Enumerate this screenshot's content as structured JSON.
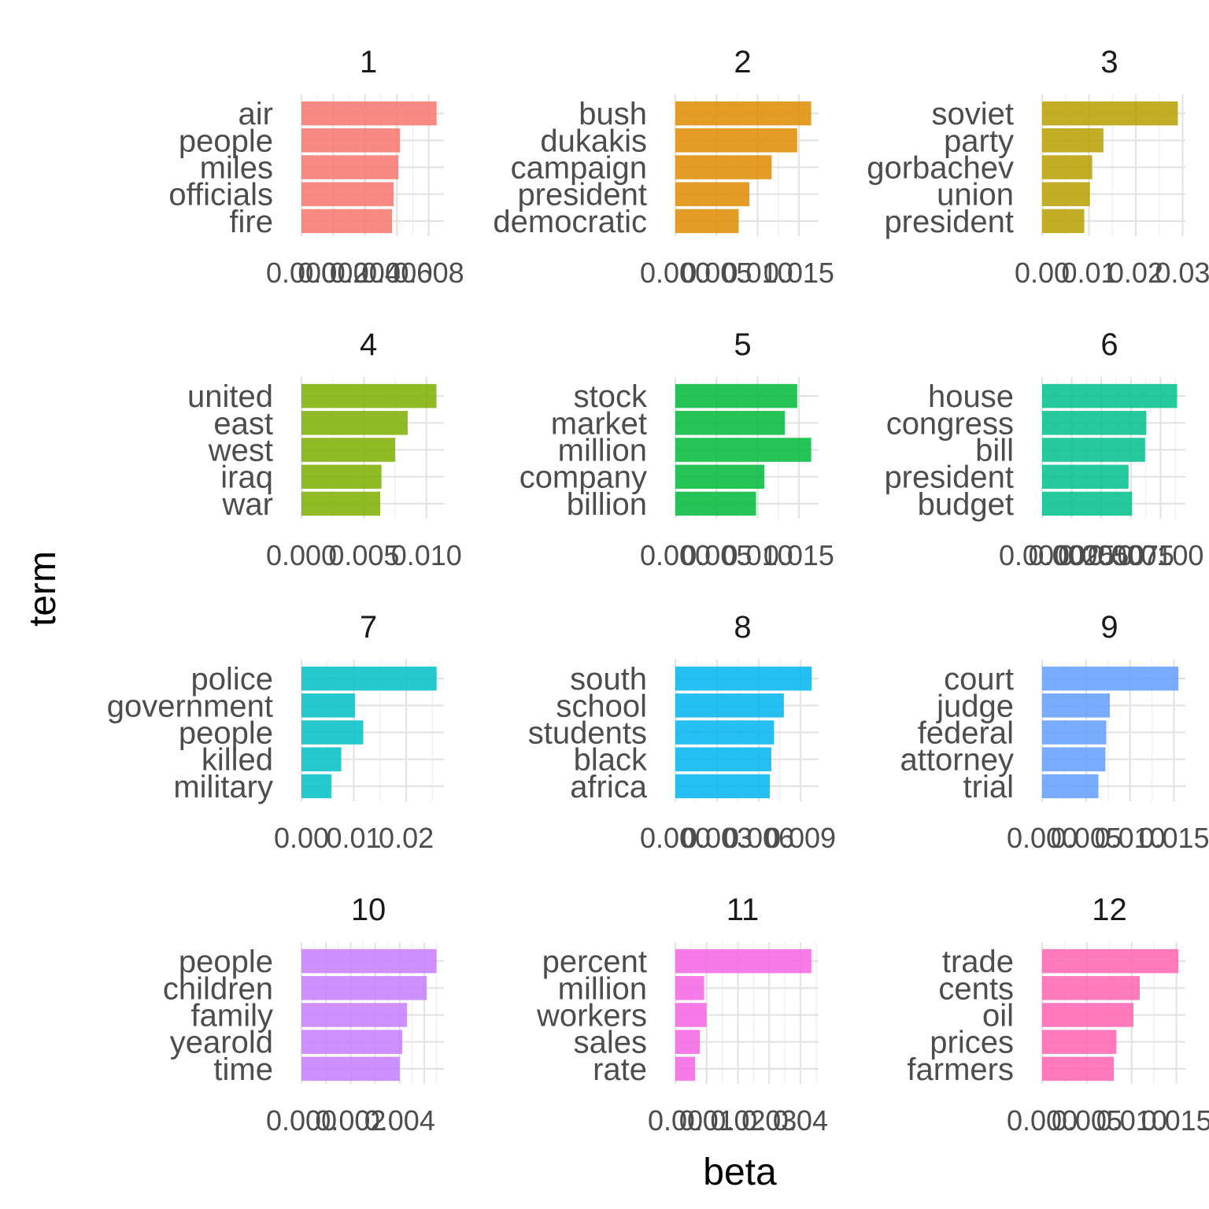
{
  "chart_data": {
    "type": "bar",
    "orientation": "horizontal",
    "facet_layout": "3 columns x 4 rows, free scales",
    "xlabel": "beta",
    "ylabel": "term",
    "grid": true,
    "legend": "none",
    "panels": [
      {
        "title": "1",
        "color": "#F8766D",
        "terms": [
          "air",
          "people",
          "miles",
          "officials",
          "fire"
        ],
        "values": [
          0.0085,
          0.0062,
          0.0061,
          0.0058,
          0.0057
        ],
        "ticks": [
          0,
          0.002,
          0.004,
          0.006,
          0.008
        ],
        "tick_labels": [
          "0.000",
          "0.002",
          "0.004",
          "0.006",
          "0.008"
        ],
        "xlim": [
          0,
          0.00896
        ]
      },
      {
        "title": "2",
        "color": "#DE8C00",
        "terms": [
          "bush",
          "dukakis",
          "campaign",
          "president",
          "democratic"
        ],
        "values": [
          0.0165,
          0.0148,
          0.0117,
          0.009,
          0.0077
        ],
        "ticks": [
          0,
          0.005,
          0.01,
          0.015
        ],
        "tick_labels": [
          "0.000",
          "0.005",
          "0.010",
          "0.015"
        ],
        "xlim": [
          0,
          0.0174
        ]
      },
      {
        "title": "3",
        "color": "#B79F00",
        "terms": [
          "soviet",
          "party",
          "gorbachev",
          "union",
          "president"
        ],
        "values": [
          0.029,
          0.0131,
          0.0107,
          0.0102,
          0.009
        ],
        "ticks": [
          0,
          0.01,
          0.02,
          0.03
        ],
        "tick_labels": [
          "0.00",
          "0.01",
          "0.02",
          "0.03"
        ],
        "xlim": [
          0,
          0.0306
        ]
      },
      {
        "title": "4",
        "color": "#7CAE00",
        "terms": [
          "united",
          "east",
          "west",
          "iraq",
          "war"
        ],
        "values": [
          0.0108,
          0.0085,
          0.0075,
          0.0064,
          0.0063
        ],
        "ticks": [
          0,
          0.005,
          0.01
        ],
        "tick_labels": [
          "0.000",
          "0.005",
          "0.010"
        ],
        "xlim": [
          0,
          0.0114
        ]
      },
      {
        "title": "5",
        "color": "#00BA38",
        "terms": [
          "stock",
          "market",
          "million",
          "company",
          "billion"
        ],
        "values": [
          0.0148,
          0.0133,
          0.0165,
          0.0108,
          0.0098
        ],
        "ticks": [
          0,
          0.005,
          0.01,
          0.015
        ],
        "tick_labels": [
          "0.000",
          "0.005",
          "0.010",
          "0.015"
        ],
        "xlim": [
          0,
          0.0174
        ]
      },
      {
        "title": "6",
        "color": "#00C08B",
        "terms": [
          "house",
          "congress",
          "bill",
          "president",
          "budget"
        ],
        "values": [
          0.0114,
          0.0088,
          0.0087,
          0.0073,
          0.0076
        ],
        "ticks": [
          0,
          0.0025,
          0.005,
          0.0075,
          0.01
        ],
        "tick_labels": [
          "0.0000",
          "0.0025",
          "0.0050",
          "0.0075",
          "0.0100"
        ],
        "xlim": [
          0,
          0.0121
        ]
      },
      {
        "title": "7",
        "color": "#00BFC4",
        "terms": [
          "police",
          "government",
          "people",
          "killed",
          "military"
        ],
        "values": [
          0.0258,
          0.0102,
          0.0118,
          0.0076,
          0.0057
        ],
        "ticks": [
          0,
          0.01,
          0.02
        ],
        "tick_labels": [
          "0.00",
          "0.01",
          "0.02"
        ],
        "xlim": [
          0,
          0.0272
        ]
      },
      {
        "title": "8",
        "color": "#00B4F0",
        "terms": [
          "south",
          "school",
          "students",
          "black",
          "africa"
        ],
        "values": [
          0.0098,
          0.0078,
          0.0071,
          0.0069,
          0.0068
        ],
        "ticks": [
          0,
          0.003,
          0.006,
          0.009
        ],
        "tick_labels": [
          "0.000",
          "0.003",
          "0.006",
          "0.009"
        ],
        "xlim": [
          0,
          0.0103
        ]
      },
      {
        "title": "9",
        "color": "#619CFF",
        "terms": [
          "court",
          "judge",
          "federal",
          "attorney",
          "trial"
        ],
        "values": [
          0.0155,
          0.0077,
          0.0073,
          0.0072,
          0.0064
        ],
        "ticks": [
          0,
          0.005,
          0.01,
          0.015
        ],
        "tick_labels": [
          "0.000",
          "0.005",
          "0.010",
          "0.015"
        ],
        "xlim": [
          0,
          0.0163
        ]
      },
      {
        "title": "10",
        "color": "#C77CFF",
        "terms": [
          "people",
          "children",
          "family",
          "yearold",
          "time"
        ],
        "values": [
          0.0055,
          0.0051,
          0.0043,
          0.0041,
          0.004
        ],
        "ticks": [
          0,
          0.001,
          0.002,
          0.003,
          0.004,
          0.005
        ],
        "tick_labels": [
          "0.000",
          "",
          "0.002",
          "",
          "0.004",
          ""
        ],
        "xlim": [
          0,
          0.0058
        ]
      },
      {
        "title": "11",
        "color": "#F564E3",
        "terms": [
          "percent",
          "million",
          "workers",
          "sales",
          "rate"
        ],
        "values": [
          0.0435,
          0.0092,
          0.01,
          0.0078,
          0.0063
        ],
        "ticks": [
          0,
          0.01,
          0.02,
          0.03,
          0.04
        ],
        "tick_labels": [
          "0.00",
          "0.01",
          "0.02",
          "0.03",
          "0.04"
        ],
        "xlim": [
          0,
          0.0458
        ]
      },
      {
        "title": "12",
        "color": "#FF64B0",
        "terms": [
          "trade",
          "cents",
          "oil",
          "prices",
          "farmers"
        ],
        "values": [
          0.0152,
          0.0109,
          0.0102,
          0.0083,
          0.008
        ],
        "ticks": [
          0,
          0.005,
          0.01,
          0.015
        ],
        "tick_labels": [
          "0.000",
          "0.005",
          "0.010",
          "0.015"
        ],
        "xlim": [
          0,
          0.016
        ]
      }
    ]
  }
}
